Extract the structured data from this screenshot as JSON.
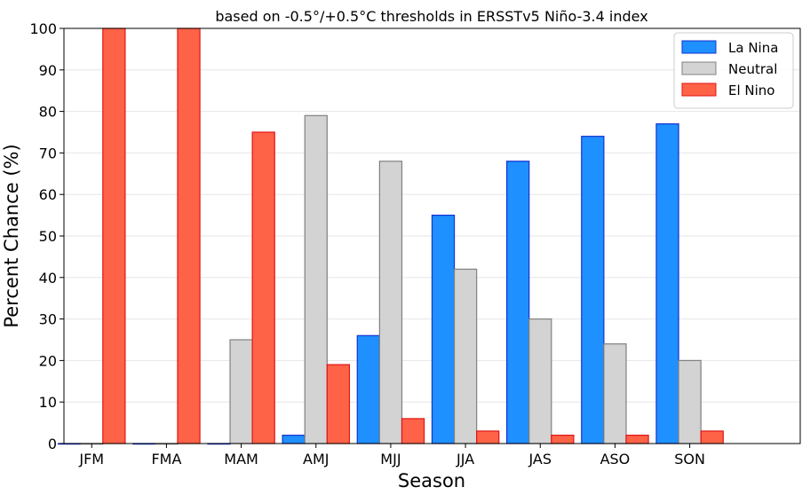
{
  "chart_data": {
    "type": "bar",
    "title": "based on -0.5°/+0.5°C thresholds in ERSSTv5 Niño-3.4 index",
    "xlabel": "Season",
    "ylabel": "Percent Chance (%)",
    "ylim": [
      0,
      100
    ],
    "yticks": [
      "0",
      "10",
      "20",
      "30",
      "40",
      "50",
      "60",
      "70",
      "80",
      "90",
      "100"
    ],
    "grid": "horizontal",
    "legend_position": "top-right",
    "categories": [
      "JFM",
      "FMA",
      "MAM",
      "AMJ",
      "MJJ",
      "JJA",
      "JAS",
      "ASO",
      "SON"
    ],
    "series": [
      {
        "name": "La Nina",
        "color": "#1e90ff",
        "edge": "#1432d2",
        "values": [
          0,
          0,
          0,
          2,
          26,
          55,
          68,
          74,
          77
        ]
      },
      {
        "name": "Neutral",
        "color": "#d3d3d3",
        "edge": "#808080",
        "values": [
          0,
          0,
          25,
          79,
          68,
          42,
          30,
          24,
          20
        ]
      },
      {
        "name": "El Nino",
        "color": "#ff6347",
        "edge": "#e01414",
        "values": [
          100,
          100,
          75,
          19,
          6,
          3,
          2,
          2,
          3
        ]
      }
    ]
  }
}
